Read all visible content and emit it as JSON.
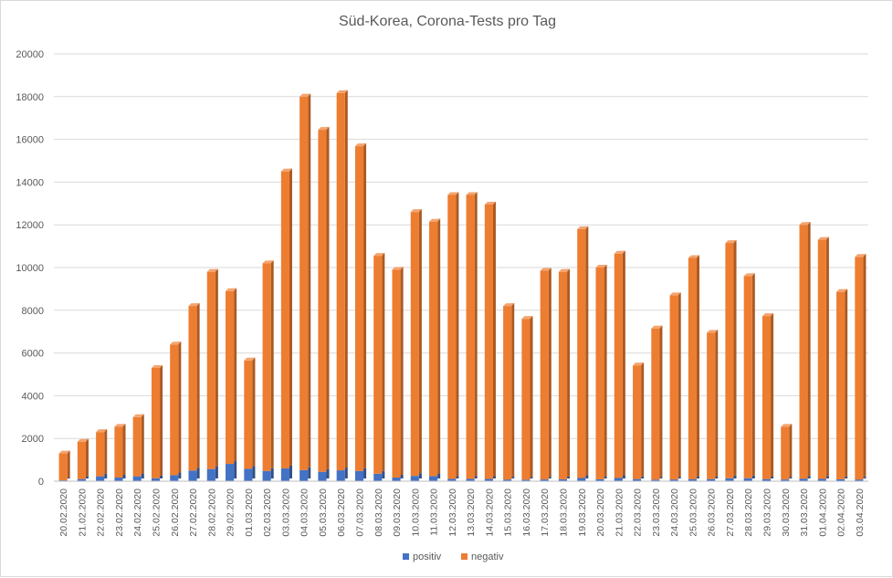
{
  "chart_data": {
    "type": "bar",
    "stacked": true,
    "title": "Süd-Korea, Corona-Tests pro Tag",
    "xlabel": "",
    "ylabel": "",
    "ylim": [
      0,
      20000
    ],
    "yticks": [
      0,
      2000,
      4000,
      6000,
      8000,
      10000,
      12000,
      14000,
      16000,
      18000,
      20000
    ],
    "grid": true,
    "legend_position": "bottom",
    "categories": [
      "20.02.2020",
      "21.02.2020",
      "22.02.2020",
      "23.02.2020",
      "24.02.2020",
      "25.02.2020",
      "26.02.2020",
      "27.02.2020",
      "28.02.2020",
      "29.02.2020",
      "01.03.2020",
      "02.03.2020",
      "03.03.2020",
      "04.03.2020",
      "05.03.2020",
      "06.03.2020",
      "07.03.2020",
      "08.03.2020",
      "09.03.2020",
      "10.03.2020",
      "11.03.2020",
      "12.03.2020",
      "13.03.2020",
      "14.03.2020",
      "15.03.2020",
      "16.03.2020",
      "17.03.2020",
      "18.03.2020",
      "19.03.2020",
      "20.03.2020",
      "21.03.2020",
      "22.03.2020",
      "23.03.2020",
      "24.03.2020",
      "25.03.2020",
      "26.03.2020",
      "27.03.2020",
      "28.03.2020",
      "29.03.2020",
      "30.03.2020",
      "31.03.2020",
      "01.04.2020",
      "02.04.2020",
      "03.04.2020"
    ],
    "series": [
      {
        "name": "positiv",
        "color": "#4472c4",
        "values": [
          40,
          100,
          230,
          170,
          230,
          140,
          280,
          500,
          570,
          810,
          580,
          480,
          600,
          520,
          440,
          510,
          480,
          350,
          170,
          250,
          240,
          110,
          110,
          110,
          80,
          70,
          80,
          90,
          150,
          90,
          150,
          100,
          70,
          80,
          100,
          100,
          140,
          140,
          100,
          80,
          120,
          110,
          90,
          80
        ]
      },
      {
        "name": "negativ",
        "color": "#ed7d31",
        "values": [
          1260,
          1750,
          2070,
          2380,
          2770,
          5160,
          6120,
          7700,
          9230,
          8090,
          5070,
          9720,
          13900,
          17480,
          16010,
          17660,
          15200,
          10200,
          9730,
          12350,
          11910,
          13290,
          13290,
          12840,
          8120,
          7530,
          9770,
          9710,
          11650,
          9910,
          10500,
          5320,
          7080,
          8620,
          10350,
          6850,
          11010,
          9460,
          7630,
          2470,
          11880,
          11190,
          8770,
          10420
        ]
      }
    ]
  }
}
